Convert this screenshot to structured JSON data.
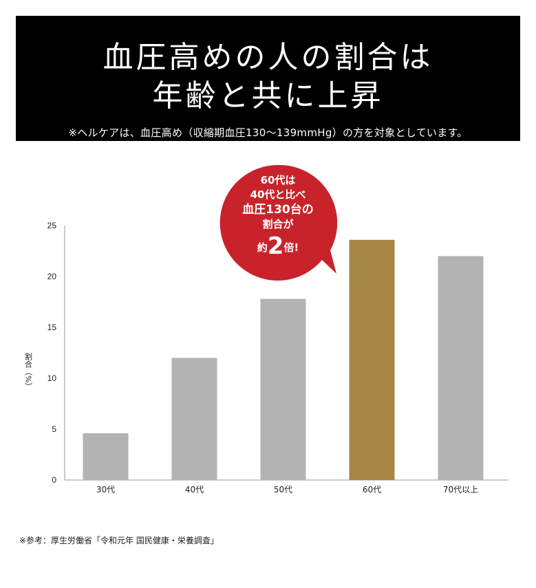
{
  "header": {
    "title_line1": "血圧高めの人の割合は",
    "title_line2": "年齢と共に上昇",
    "note": "※ヘルケアは、血圧高め（収縮期血圧130〜139mmHg）の方を対象としています。"
  },
  "badge": {
    "line1": "60代は",
    "line2": "40代と比べ",
    "line3": "血圧130台の",
    "line4": "割合が",
    "line5_pre": "約",
    "line5_num": "2",
    "line5_post": "倍!",
    "color": "#c8232b"
  },
  "chart_data": {
    "type": "bar",
    "categories": [
      "30代",
      "40代",
      "50代",
      "60代",
      "70代以上"
    ],
    "values": [
      4.6,
      12.0,
      17.8,
      23.6,
      22.0
    ],
    "ylabel": "割合（%）",
    "xlabel": "",
    "ylim": [
      0,
      25
    ],
    "yticks": [
      0,
      5,
      10,
      15,
      20,
      25
    ],
    "grid": false,
    "colors": [
      "#b3b3b3",
      "#b3b3b3",
      "#b3b3b3",
      "#a68746",
      "#b3b3b3"
    ]
  },
  "source": "※参考：厚生労働省「令和元年 国民健康・栄養調査」"
}
